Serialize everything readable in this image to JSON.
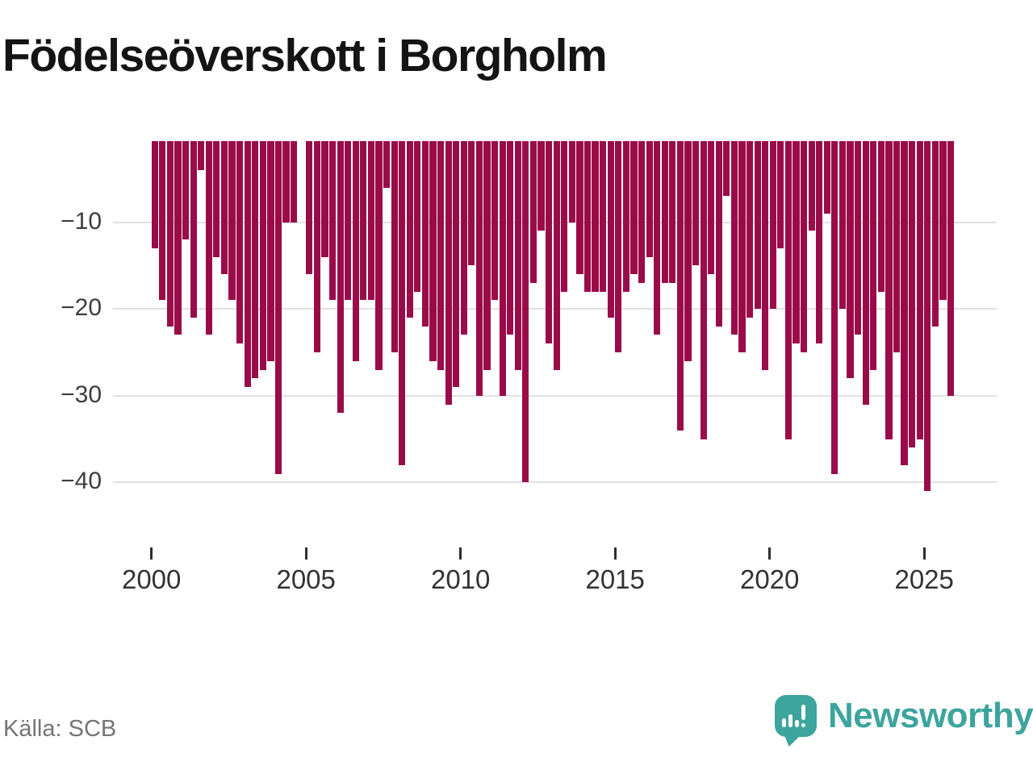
{
  "title": "Födelseöverskott i Borgholm",
  "source": "Källa: SCB",
  "logo": {
    "text": "Newsworthy",
    "color": "#3da49e"
  },
  "colors": {
    "bar": "#9a0b4a",
    "grid": "#e1e1e1",
    "axis_text": "#3d3d3d",
    "tick_text": "#333333",
    "title_text": "#141414",
    "source_text": "#757575",
    "logo_teal": "#3da49e"
  },
  "chart_data": {
    "type": "bar",
    "frequency": "quarterly",
    "start_period": "2000 Q1",
    "end_period": "2025 Q4",
    "grid": "horizontal",
    "legend": "none",
    "ylim": [
      -43,
      0
    ],
    "y_ticks": [
      "−10",
      "−20",
      "−30",
      "−40"
    ],
    "y_tick_values": [
      -10,
      -20,
      -30,
      -40
    ],
    "x_tick_years": [
      2000,
      2005,
      2010,
      2015,
      2020,
      2025
    ],
    "values": [
      -13,
      -19,
      -22,
      -23,
      -12,
      -21,
      -4,
      -23,
      -14,
      -16,
      -19,
      -24,
      -29,
      -28,
      -27,
      -26,
      -39,
      -10,
      -10,
      0,
      -16,
      -25,
      -14,
      -19,
      -32,
      -19,
      -26,
      -19,
      -19,
      -27,
      -6,
      -25,
      -38,
      -21,
      -18,
      -22,
      -26,
      -27,
      -31,
      -29,
      -23,
      -15,
      -30,
      -27,
      -19,
      -30,
      -23,
      -27,
      -40,
      -17,
      -11,
      -24,
      -27,
      -18,
      -10,
      -16,
      -18,
      -18,
      -18,
      -21,
      -25,
      -18,
      -16,
      -17,
      -14,
      -23,
      -17,
      -17,
      -34,
      -26,
      -15,
      -35,
      -16,
      -22,
      -7,
      -23,
      -25,
      -21,
      -20,
      -27,
      -20,
      -13,
      -35,
      -24,
      -25,
      -11,
      -24,
      -9,
      -39,
      -20,
      -28,
      -23,
      -31,
      -27,
      -18,
      -35,
      -25,
      -38,
      -36,
      -35,
      -41,
      -22,
      -19,
      -30
    ]
  }
}
